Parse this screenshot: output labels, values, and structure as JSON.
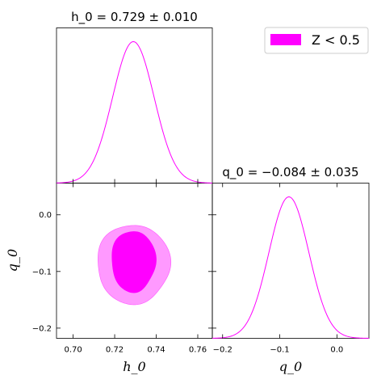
{
  "chart_data": {
    "type": "corner",
    "titles": {
      "h0": "h_0 = 0.729 ± 0.010",
      "q0": "q_0 = −0.084 ± 0.035"
    },
    "axis_labels": {
      "h0": "h_0",
      "q0": "q_0"
    },
    "legend": {
      "label": "Z < 0.5",
      "color": "#ff00ff",
      "placement": "top-right"
    },
    "h0": {
      "xlim": [
        0.692,
        0.767
      ],
      "ticks": [
        0.7,
        0.72,
        0.74,
        0.76
      ],
      "tick_labels": [
        "0.70",
        "0.72",
        "0.74",
        "0.76"
      ],
      "mean": 0.729,
      "sigma": 0.01
    },
    "q0": {
      "xlim": [
        -0.218,
        0.056
      ],
      "ticks": [
        -0.2,
        -0.1,
        0.0
      ],
      "tick_labels": [
        "−0.2",
        "−0.1",
        "0.0"
      ],
      "mean": -0.084,
      "sigma": 0.035
    },
    "contours": [
      {
        "level": "95%",
        "color": "#ff99ff",
        "center": [
          0.729,
          -0.087
        ],
        "half_widths": [
          0.0175,
          0.07
        ]
      },
      {
        "level": "68%",
        "color": "#ff00ff",
        "center": [
          0.729,
          -0.082
        ],
        "half_widths": [
          0.0106,
          0.054
        ]
      }
    ]
  }
}
